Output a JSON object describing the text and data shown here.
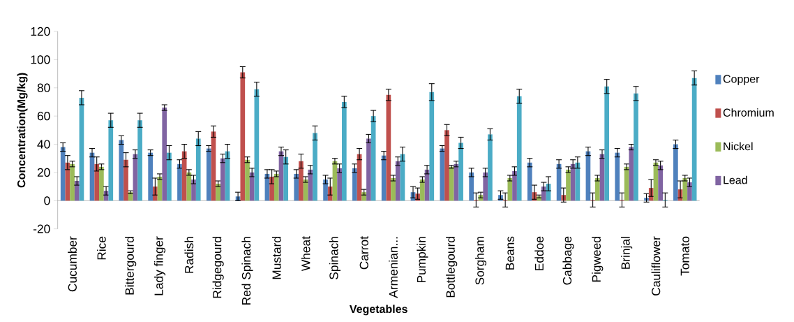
{
  "chart_data": {
    "type": "bar",
    "xlabel": "Vegetables",
    "ylabel": "Concentration(Mg/kg)",
    "categories": [
      "Cucumber",
      "Rice",
      "Bittergourd",
      "Lady finger",
      "Radish",
      "Ridgegourd",
      "Red Spinach",
      "Mustard",
      "Wheat",
      "Spinach",
      "Carrot",
      "Armenian...",
      "Pumpkin",
      "Bottlegourd",
      "Sorgham",
      "Beans",
      "Eddoe",
      "Cabbage",
      "Pigweed",
      "Brinjal",
      "Cauliflower",
      "Tomato"
    ],
    "ylim": [
      -20,
      120
    ],
    "yticks": [
      -20,
      0,
      20,
      40,
      60,
      80,
      100,
      120
    ],
    "legend": "right",
    "series": [
      {
        "name": "Copper",
        "color": "#4f81bd",
        "values": [
          38,
          34,
          43,
          34,
          26,
          37,
          3,
          19,
          19,
          15,
          23,
          32,
          6,
          37,
          20,
          4,
          27,
          26,
          35,
          34,
          2,
          40
        ],
        "errors": [
          3,
          3,
          3,
          2,
          3,
          2,
          3,
          3,
          3,
          3,
          3,
          3,
          4,
          2,
          3,
          3,
          3,
          3,
          3,
          3,
          3,
          3
        ]
      },
      {
        "name": "Chromium",
        "color": "#c0504d",
        "values": [
          27,
          26,
          29,
          10,
          35,
          49,
          91,
          17,
          28,
          10,
          33,
          75,
          5,
          50,
          0.5,
          0.5,
          6,
          4,
          0.5,
          0.5,
          9,
          8
        ],
        "errors": [
          5,
          5,
          5,
          6,
          5,
          4,
          4,
          5,
          5,
          6,
          4,
          4,
          4,
          4,
          5,
          5,
          5,
          5,
          5,
          5,
          6,
          6
        ]
      },
      {
        "name": "Nickel",
        "color": "#9bbb59",
        "values": [
          26,
          24,
          6,
          17,
          20,
          12,
          29,
          19,
          15,
          28,
          6,
          16,
          15,
          24,
          4,
          16,
          3,
          22,
          16,
          24,
          27,
          16
        ],
        "errors": [
          2,
          2,
          1,
          2,
          2,
          2,
          2,
          2,
          2,
          2,
          2,
          2,
          2,
          1,
          2,
          2,
          1,
          2,
          2,
          2,
          2,
          2
        ]
      },
      {
        "name": "Lead",
        "color": "#8064a2",
        "values": [
          14,
          7,
          33,
          66,
          15,
          30,
          20,
          35,
          22,
          23,
          44,
          28,
          22,
          26,
          20,
          21,
          10,
          26,
          33,
          38,
          25,
          13
        ],
        "errors": [
          3,
          3,
          3,
          2,
          3,
          3,
          3,
          3,
          3,
          3,
          3,
          3,
          3,
          2,
          3,
          3,
          3,
          3,
          3,
          2,
          3,
          3
        ]
      },
      {
        "color": "#4bacc6",
        "values": [
          73,
          57,
          57,
          34,
          44,
          35,
          79,
          31,
          48,
          70,
          60,
          33,
          77,
          41,
          47,
          74,
          12,
          27,
          81,
          76,
          0.5,
          87
        ],
        "errors": [
          5,
          5,
          5,
          5,
          5,
          5,
          5,
          5,
          5,
          4,
          4,
          5,
          6,
          4,
          4,
          5,
          5,
          4,
          5,
          5,
          5,
          5
        ]
      }
    ]
  }
}
